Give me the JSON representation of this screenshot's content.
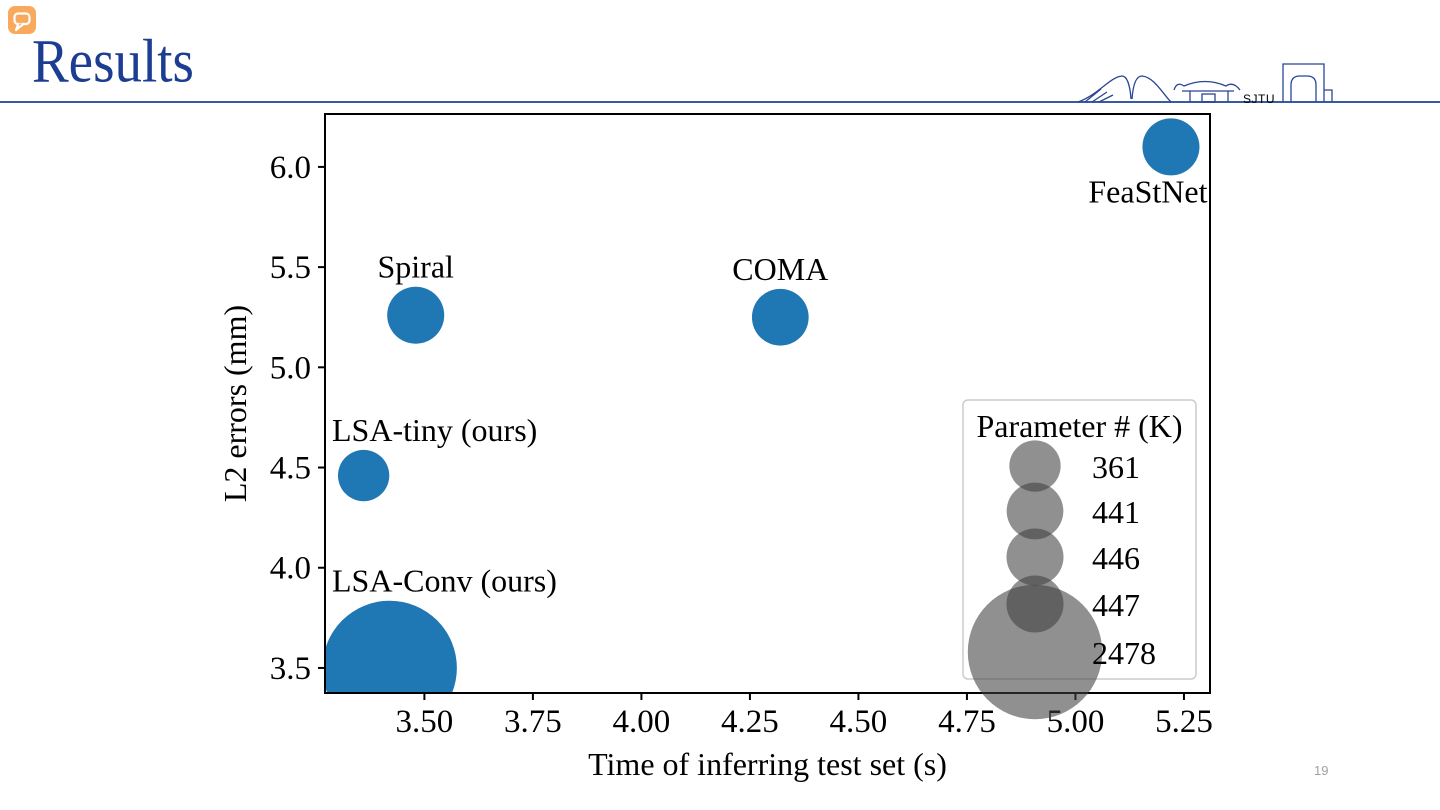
{
  "slide": {
    "title": "Results",
    "page_number": "19",
    "logo_text": "SJTU",
    "title_color": "#1c3d92",
    "rule_color": "#3a59a5",
    "icon": "speech-bubble",
    "icon_color": "#f8a95c"
  },
  "chart_data": {
    "type": "scatter",
    "title": "",
    "xlabel": "Time of inferring test set (s)",
    "ylabel": "L2 errors (mm)",
    "xlim": [
      3.271,
      5.31
    ],
    "ylim": [
      3.375,
      6.264
    ],
    "xticks": [
      3.5,
      3.75,
      4.0,
      4.25,
      4.5,
      4.75,
      5.0,
      5.25
    ],
    "yticks": [
      3.5,
      4.0,
      4.5,
      5.0,
      5.5,
      6.0
    ],
    "grid": false,
    "legend_position": "lower right",
    "point_color": "#1f77b4",
    "legend_bubble_color": "#3f3f3f",
    "size_unit": "Parameter # (K)",
    "points": [
      {
        "label": "Spiral",
        "x": 3.48,
        "y": 5.26,
        "params_k": 446,
        "label_pos": "above-center"
      },
      {
        "label": "COMA",
        "x": 4.32,
        "y": 5.25,
        "params_k": 441,
        "label_pos": "above-center"
      },
      {
        "label": "FeaStNet",
        "x": 5.22,
        "y": 6.1,
        "params_k": 447,
        "label_pos": "below-right"
      },
      {
        "label": "LSA-tiny (ours)",
        "x": 3.36,
        "y": 4.46,
        "params_k": 361,
        "label_pos": "above-left"
      },
      {
        "label": "LSA-Conv (ours)",
        "x": 3.42,
        "y": 3.5,
        "params_k": 2478,
        "label_pos": "above-left"
      }
    ],
    "legend": {
      "title": "Parameter # (K)",
      "entries": [
        361,
        441,
        446,
        447,
        2478
      ]
    }
  }
}
